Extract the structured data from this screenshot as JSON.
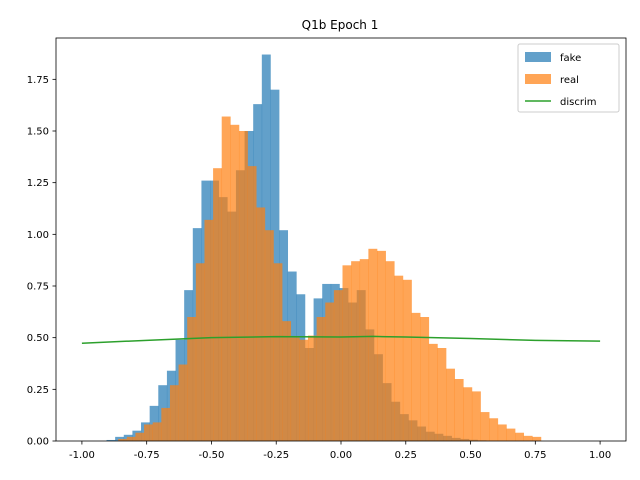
{
  "chart_data": {
    "type": "bar",
    "title": "Q1b Epoch 1",
    "xlabel": "",
    "ylabel": "",
    "xlim": [
      -1.1,
      1.1
    ],
    "ylim": [
      0,
      1.95
    ],
    "grid": false,
    "legend_position": "top-right",
    "x_ticks": [
      "-1.00",
      "-0.75",
      "-0.50",
      "-0.25",
      "0.00",
      "0.25",
      "0.50",
      "0.75",
      "1.00"
    ],
    "y_ticks": [
      "0.00",
      "0.25",
      "0.50",
      "0.75",
      "1.00",
      "1.25",
      "1.50",
      "1.75"
    ],
    "series": [
      {
        "name": "fake",
        "kind": "histogram",
        "color": "#1f77b4",
        "opacity": 0.7,
        "bin_start": -0.905,
        "bin_width": 0.0333,
        "values": [
          0.005,
          0.02,
          0.03,
          0.05,
          0.09,
          0.17,
          0.27,
          0.34,
          0.49,
          0.73,
          1.03,
          1.26,
          1.26,
          1.18,
          1.11,
          1.31,
          1.5,
          1.63,
          1.87,
          1.7,
          1.02,
          0.82,
          0.71,
          0.45,
          0.69,
          0.76,
          0.76,
          0.74,
          0.67,
          0.73,
          0.54,
          0.42,
          0.28,
          0.19,
          0.13,
          0.1,
          0.07,
          0.045,
          0.035,
          0.025,
          0.015,
          0.01,
          0.006,
          0.003
        ]
      },
      {
        "name": "real",
        "kind": "histogram",
        "color": "#ff7f0e",
        "opacity": 0.7,
        "bin_start": -0.86,
        "bin_width": 0.0333,
        "values": [
          0.01,
          0.02,
          0.04,
          0.08,
          0.09,
          0.16,
          0.27,
          0.37,
          0.6,
          0.86,
          1.07,
          1.32,
          1.57,
          1.53,
          1.5,
          1.33,
          1.13,
          1.02,
          0.86,
          0.58,
          0.5,
          0.49,
          0.51,
          0.6,
          0.67,
          0.73,
          0.85,
          0.87,
          0.88,
          0.93,
          0.92,
          0.87,
          0.8,
          0.78,
          0.62,
          0.6,
          0.47,
          0.45,
          0.35,
          0.3,
          0.26,
          0.24,
          0.14,
          0.11,
          0.08,
          0.06,
          0.04,
          0.025,
          0.02
        ]
      },
      {
        "name": "discrim",
        "kind": "line",
        "color": "#2ca02c",
        "x": [
          -1.0,
          -0.75,
          -0.5,
          -0.25,
          0.0,
          0.125,
          0.25,
          0.5,
          0.75,
          1.0
        ],
        "values": [
          0.473,
          0.487,
          0.5,
          0.505,
          0.503,
          0.506,
          0.503,
          0.496,
          0.487,
          0.483
        ]
      }
    ]
  }
}
